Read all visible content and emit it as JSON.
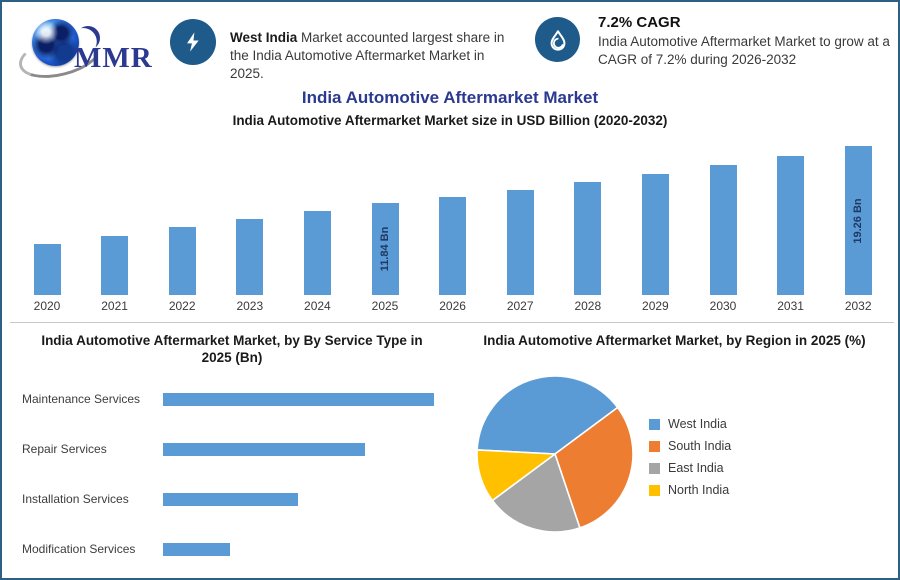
{
  "logo": {
    "text": "MMR"
  },
  "header": {
    "callout1": {
      "icon": "lightning-icon",
      "bold_text": "West India",
      "text": " Market accounted largest share in the India Automotive Aftermarket Market in 2025."
    },
    "callout2": {
      "icon": "drop-icon",
      "title": "7.2% CAGR",
      "text": "India Automotive Aftermarket Market to grow at a CAGR of 7.2% during 2026-2032"
    }
  },
  "main_title": "India Automotive Aftermarket Market",
  "colors": {
    "bar_blue": "#5B9BD5",
    "accent_circle_blue": "#1E5A8A",
    "title_navy": "#2B3990",
    "data_label_navy": "#1F3864",
    "pie_orange": "#ED7D31",
    "pie_gray": "#A5A5A5",
    "pie_yellow": "#FFC000",
    "frame_border": "#2E5F85"
  },
  "chart_data": [
    {
      "type": "bar",
      "title": "India Automotive Aftermarket Market size in USD Billion (2020-2032)",
      "categories": [
        "2020",
        "2021",
        "2022",
        "2023",
        "2024",
        "2025",
        "2026",
        "2027",
        "2028",
        "2029",
        "2030",
        "2031",
        "2032"
      ],
      "values": [
        6.6,
        7.6,
        8.8,
        9.8,
        10.8,
        11.84,
        12.69,
        13.61,
        14.59,
        15.64,
        16.76,
        17.97,
        19.26
      ],
      "data_labels": {
        "2025": "11.84 Bn",
        "2032": "19.26 Bn"
      },
      "bar_color": "#5B9BD5",
      "xlabel": "",
      "ylabel": "USD Billion",
      "ylim": [
        0,
        20
      ],
      "grid": false,
      "legend": false
    },
    {
      "type": "bar-horizontal",
      "title": "India Automotive Aftermarket Market, by By Service Type in 2025 (Bn)",
      "categories": [
        "Maintenance Services",
        "Repair Services",
        "Installation Services",
        "Modification Services"
      ],
      "values": [
        4.75,
        3.54,
        2.37,
        1.17
      ],
      "bar_color": "#5B9BD5",
      "xlim": [
        0,
        5
      ],
      "grid": false,
      "legend": false
    },
    {
      "type": "pie",
      "title": "India Automotive Aftermarket Market, by Region in 2025 (%)",
      "labels": [
        "West India",
        "South India",
        "East India",
        "North India"
      ],
      "values": [
        39,
        30,
        20,
        11
      ],
      "colors": [
        "#5B9BD5",
        "#ED7D31",
        "#A5A5A5",
        "#FFC000"
      ],
      "start_angle_deg": 273,
      "legend_position": "right"
    }
  ]
}
